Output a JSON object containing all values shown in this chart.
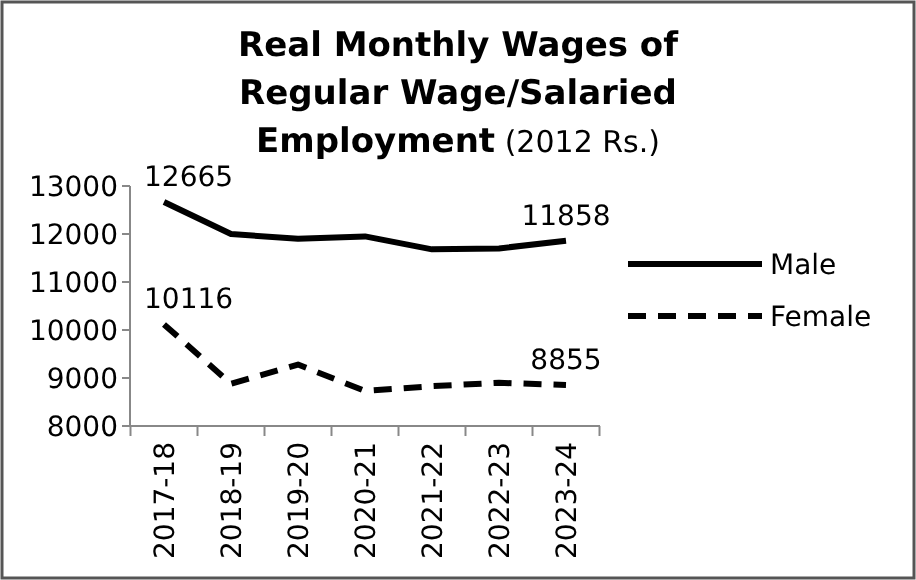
{
  "chart_data": {
    "type": "line",
    "title": "Real Monthly Wages of Regular Wage/Salaried Employment",
    "subtitle": "(2012 Rs.)",
    "categories": [
      "2017-18",
      "2018-19",
      "2019-20",
      "2020-21",
      "2021-22",
      "2022-23",
      "2023-24"
    ],
    "series": [
      {
        "name": "Male",
        "color": "#000000",
        "line_style": "solid",
        "values": [
          12665,
          12000,
          11900,
          11950,
          11680,
          11700,
          11858
        ],
        "value_labels": [
          "12665",
          null,
          null,
          null,
          null,
          null,
          "11858"
        ]
      },
      {
        "name": "Female",
        "color": "#000000",
        "line_style": "dashed",
        "values": [
          10116,
          8880,
          9280,
          8730,
          8830,
          8900,
          8855
        ],
        "value_labels": [
          "10116",
          null,
          null,
          null,
          null,
          null,
          "8855"
        ]
      }
    ],
    "ylim": [
      8000,
      13000
    ],
    "yticks": [
      8000,
      9000,
      10000,
      11000,
      12000,
      13000
    ],
    "grid": false,
    "legend": "right",
    "marker": "none"
  }
}
